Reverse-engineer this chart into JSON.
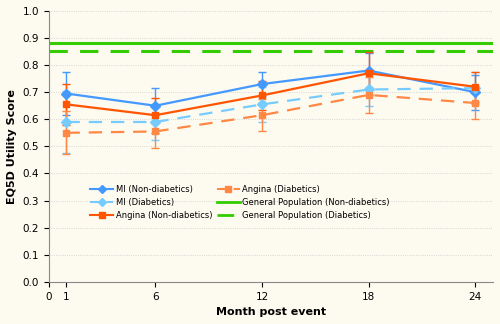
{
  "months": [
    1,
    6,
    12,
    18,
    24
  ],
  "mi_nondiab": [
    0.695,
    0.65,
    0.73,
    0.78,
    0.7
  ],
  "mi_nondiab_err": [
    0.08,
    0.065,
    0.045,
    0.065,
    0.065
  ],
  "mi_diab": [
    0.59,
    0.59,
    0.655,
    0.71,
    0.715
  ],
  "mi_diab_err": [
    0.115,
    0.065,
    0.065,
    0.06,
    0.06
  ],
  "angina_nondiab": [
    0.655,
    0.615,
    0.688,
    0.77,
    0.72
  ],
  "angina_nondiab_err": [
    0.075,
    0.065,
    0.055,
    0.08,
    0.055
  ],
  "angina_diab": [
    0.55,
    0.555,
    0.615,
    0.69,
    0.66
  ],
  "angina_diab_err": [
    0.08,
    0.06,
    0.06,
    0.065,
    0.06
  ],
  "gen_pop_nondiab": 0.883,
  "gen_pop_diab": 0.852,
  "color_blue_solid": "#4499FF",
  "color_blue_dashed": "#77CCFF",
  "color_orange_solid": "#FF5500",
  "color_orange_dashed": "#FF8844",
  "color_green": "#33CC00",
  "xlabel": "Month post event",
  "ylabel": "EQ5D Utility Score",
  "xlim": [
    0,
    25
  ],
  "ylim": [
    0,
    1.0
  ],
  "yticks": [
    0,
    0.1,
    0.2,
    0.3,
    0.4,
    0.5,
    0.6,
    0.7,
    0.8,
    0.9,
    1.0
  ],
  "xticks": [
    0,
    1,
    6,
    12,
    18,
    24
  ],
  "bg_color": "#FDFAF0"
}
